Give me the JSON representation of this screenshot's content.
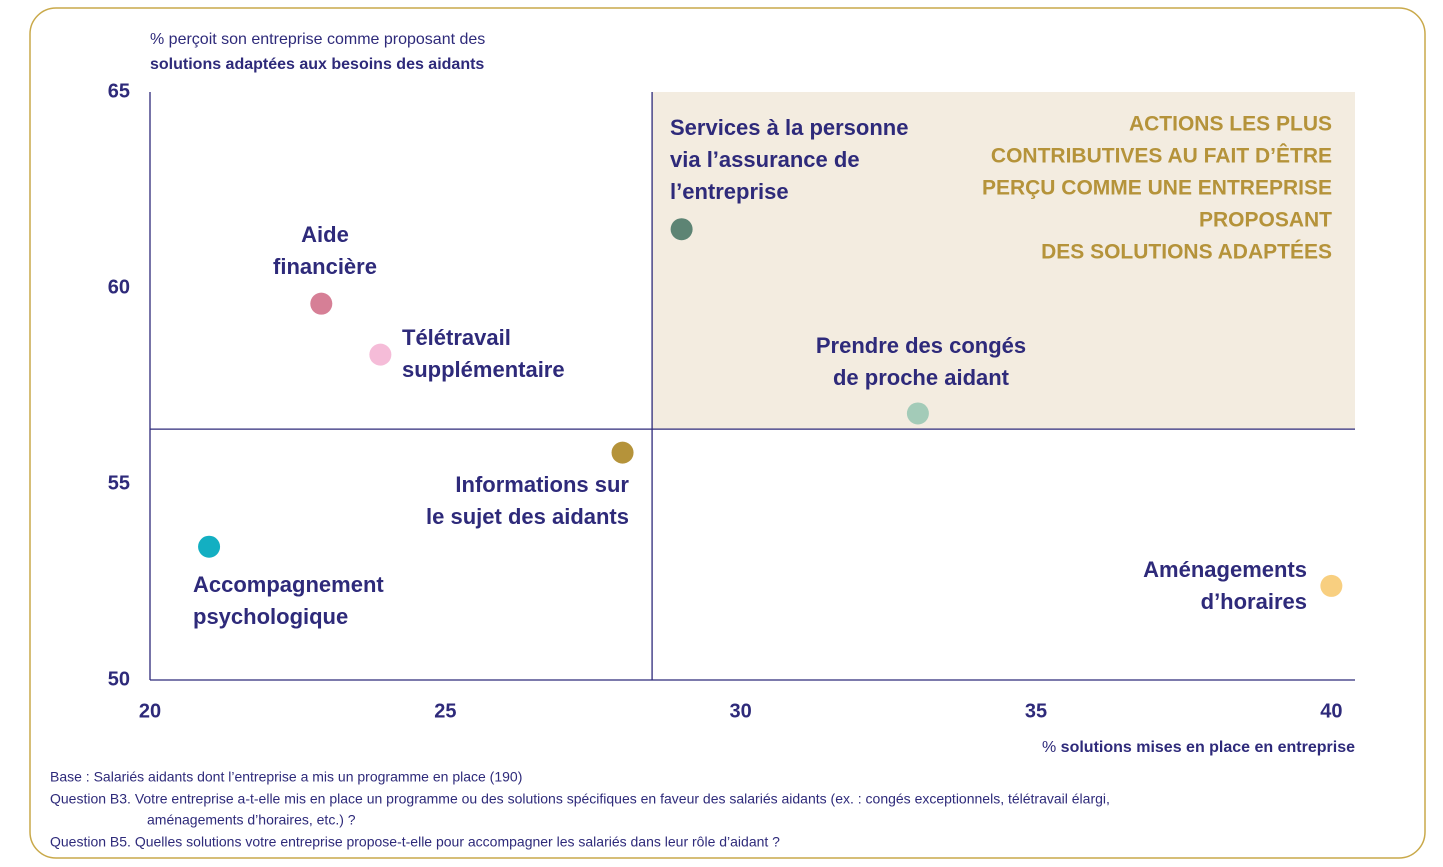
{
  "chart_data": {
    "type": "scatter",
    "y_label": [
      "% perçoit son entreprise comme proposant des",
      "solutions adaptées aux besoins des aidants"
    ],
    "x_label": [
      "% ",
      "solutions mises en place en entreprise"
    ],
    "xlim": [
      20,
      40.4
    ],
    "ylim": [
      50,
      65
    ],
    "xticks": [
      20,
      25,
      30,
      35,
      40
    ],
    "yticks": [
      50,
      55,
      60,
      65
    ],
    "quadrant_x": 28.5,
    "quadrant_y": 56.4,
    "highlight_color": "#f3ece0",
    "highlight_text": [
      "ACTIONS LES PLUS",
      "CONTRIBUTIVES AU FAIT D’ÊTRE",
      "PERÇU COMME UNE ENTREPRISE",
      "PROPOSANT",
      "DES SOLUTIONS ADAPTÉES"
    ],
    "points": [
      {
        "label": [
          "Aide",
          "financière"
        ],
        "x": 22.9,
        "y": 59.6,
        "color": "#d67f96"
      },
      {
        "label": [
          "Télétravail",
          "supplémentaire"
        ],
        "x": 23.9,
        "y": 58.3,
        "color": "#f5bcd8"
      },
      {
        "label": [
          "Services à la personne",
          "via l’assurance de",
          "l’entreprise"
        ],
        "x": 29.0,
        "y": 61.5,
        "color": "#5d8474"
      },
      {
        "label": [
          "Prendre des congés",
          "de proche aidant"
        ],
        "x": 33.0,
        "y": 56.8,
        "color": "#a3cbb8"
      },
      {
        "label": [
          "Informations sur",
          "le sujet des aidants"
        ],
        "x": 28.0,
        "y": 55.8,
        "color": "#b5933a"
      },
      {
        "label": [
          "Accompagnement",
          "psychologique"
        ],
        "x": 21.0,
        "y": 53.4,
        "color": "#13afc2"
      },
      {
        "label": [
          "Aménagements",
          "d’horaires"
        ],
        "x": 40.0,
        "y": 52.4,
        "color": "#f8cf80"
      }
    ]
  },
  "notes": [
    "Base : Salariés aidants dont l’entreprise a mis un programme en place (190)",
    "Question B3. Votre entreprise a-t-elle mis en place un programme ou des solutions spécifiques en faveur des salariés aidants (ex. : congés exceptionnels, télétravail élargi,",
    "aménagements d’horaires, etc.) ?",
    "Question B5. Quelles solutions votre entreprise propose-t-elle pour accompagner les salariés dans leur rôle d’aidant ?"
  ]
}
